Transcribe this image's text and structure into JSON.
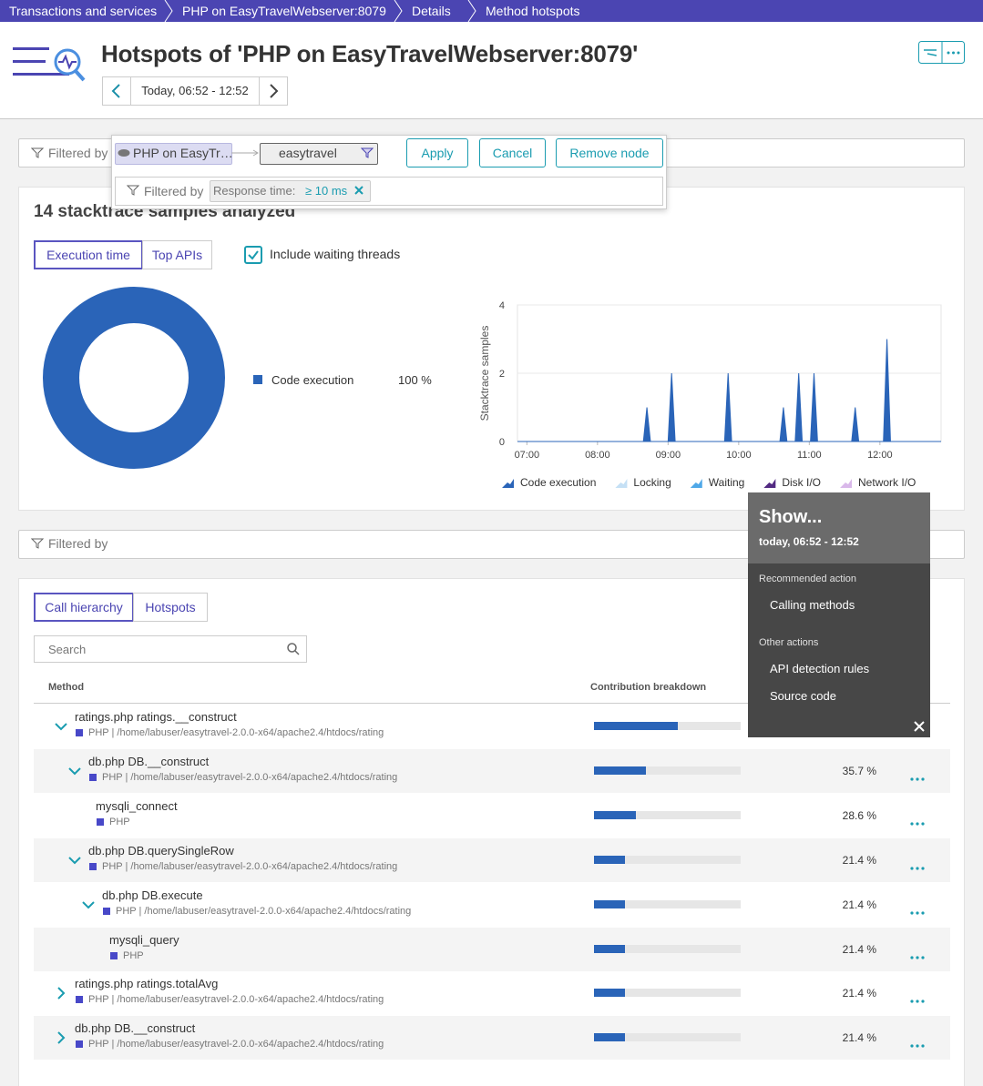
{
  "breadcrumbs": [
    "Transactions and services",
    "PHP on EasyTravelWebserver:8079",
    "Details",
    "Method hotspots"
  ],
  "header": {
    "title": "Hotspots of 'PHP on EasyTravelWebserver:8079'",
    "timeframe": "Today, 06:52 - 12:52"
  },
  "filter_editor": {
    "label": "Filtered by",
    "service_chip": "PHP on EasyTr…",
    "node_chip": "easytravel",
    "buttons": [
      "Apply",
      "Cancel",
      "Remove node"
    ],
    "sub_filter_label": "Filtered by",
    "response_filter": {
      "name": "Response time:",
      "value": "≥ 10 ms"
    }
  },
  "summary": {
    "title": "14 stacktrace samples analyzed",
    "tabs": [
      "Execution time",
      "Top APIs"
    ],
    "checkbox": "Include waiting threads"
  },
  "chart_data": [
    {
      "type": "pie",
      "categories": [
        "Code execution"
      ],
      "values": [
        100
      ],
      "value_labels": [
        "100 %"
      ],
      "colors": [
        "#2a64b8"
      ]
    },
    {
      "type": "area",
      "y_label": "Stacktrace samples",
      "x": [
        "06:52",
        "08:39",
        "08:42",
        "08:45",
        "09:00",
        "09:03",
        "09:06",
        "09:48",
        "09:51",
        "09:54",
        "10:35",
        "10:38",
        "10:41",
        "10:48",
        "10:51",
        "10:54",
        "11:01",
        "11:04",
        "11:07",
        "11:36",
        "11:39",
        "11:42",
        "12:03",
        "12:06",
        "12:09",
        "12:52"
      ],
      "xlim": [
        "06:52",
        "12:52"
      ],
      "xticks": [
        "07:00",
        "08:00",
        "09:00",
        "10:00",
        "11:00",
        "12:00"
      ],
      "ylim": [
        0,
        4
      ],
      "yticks": [
        0,
        2,
        4
      ],
      "grid": true,
      "series": [
        {
          "name": "Code execution",
          "color": "#2a64b8",
          "values": [
            0,
            0,
            1,
            0,
            0,
            2,
            0,
            0,
            2,
            0,
            0,
            1,
            0,
            0,
            2,
            0,
            0,
            2,
            0,
            0,
            1,
            0,
            0,
            3,
            0,
            0
          ]
        },
        {
          "name": "Locking",
          "color": "#c5e0f5",
          "values": [
            0,
            0,
            0,
            0,
            0,
            0,
            0,
            0,
            0,
            0,
            0,
            0,
            0,
            0,
            0,
            0,
            0,
            0,
            0,
            0,
            0,
            0,
            0,
            0,
            0,
            0
          ]
        },
        {
          "name": "Waiting",
          "color": "#4fa8e8",
          "values": [
            0,
            0,
            0,
            0,
            0,
            0,
            0,
            0,
            0,
            0,
            0,
            0,
            0,
            0,
            0,
            0,
            0,
            0,
            0,
            0,
            0,
            0,
            0,
            0,
            0,
            0
          ]
        },
        {
          "name": "Disk I/O",
          "color": "#522a82",
          "values": [
            0,
            0,
            0,
            0,
            0,
            0,
            0,
            0,
            0,
            0,
            0,
            0,
            0,
            0,
            0,
            0,
            0,
            0,
            0,
            0,
            0,
            0,
            0,
            0,
            0,
            0
          ]
        },
        {
          "name": "Network I/O",
          "color": "#d9b8ea",
          "values": [
            0,
            0,
            0,
            0,
            0,
            0,
            0,
            0,
            0,
            0,
            0,
            0,
            0,
            0,
            0,
            0,
            0,
            0,
            0,
            0,
            0,
            0,
            0,
            0,
            0,
            0
          ]
        }
      ]
    }
  ],
  "method_filter": {
    "label": "Filtered by"
  },
  "methods": {
    "tabs": [
      "Call hierarchy",
      "Hotspots"
    ],
    "search_placeholder": "Search",
    "columns": [
      "Method",
      "Contribution breakdown"
    ],
    "rows": [
      {
        "name": "ratings.php ratings.__construct",
        "source": "PHP | /home/labuser/easytravel-2.0.0-x64/apache2.4/htdocs/rating",
        "depth": 0,
        "expanded": true,
        "contribution": 57.1
      },
      {
        "name": "db.php DB.__construct",
        "source": "PHP | /home/labuser/easytravel-2.0.0-x64/apache2.4/htdocs/rating",
        "depth": 1,
        "expanded": true,
        "contribution": 35.7,
        "contribution_label": "35.7 %"
      },
      {
        "name": "mysqli_connect",
        "source": "PHP",
        "depth": 2,
        "expanded": null,
        "contribution": 28.6,
        "contribution_label": "28.6 %"
      },
      {
        "name": "db.php DB.querySingleRow",
        "source": "PHP | /home/labuser/easytravel-2.0.0-x64/apache2.4/htdocs/rating",
        "depth": 1,
        "expanded": true,
        "contribution": 21.4,
        "contribution_label": "21.4 %"
      },
      {
        "name": "db.php DB.execute",
        "source": "PHP | /home/labuser/easytravel-2.0.0-x64/apache2.4/htdocs/rating",
        "depth": 2,
        "expanded": true,
        "contribution": 21.4,
        "contribution_label": "21.4 %"
      },
      {
        "name": "mysqli_query",
        "source": "PHP",
        "depth": 3,
        "expanded": null,
        "contribution": 21.4,
        "contribution_label": "21.4 %"
      },
      {
        "name": "ratings.php ratings.totalAvg",
        "source": "PHP | /home/labuser/easytravel-2.0.0-x64/apache2.4/htdocs/rating",
        "depth": 0,
        "expanded": false,
        "contribution": 21.4,
        "contribution_label": "21.4 %"
      },
      {
        "name": "db.php DB.__construct",
        "source": "PHP | /home/labuser/easytravel-2.0.0-x64/apache2.4/htdocs/rating",
        "depth": 0,
        "expanded": false,
        "contribution": 21.4,
        "contribution_label": "21.4 %"
      }
    ]
  },
  "context_menu": {
    "title": "Show...",
    "subtitle": "today, 06:52 - 12:52",
    "recommended_heading": "Recommended action",
    "recommended": [
      "Calling methods"
    ],
    "other_heading": "Other actions",
    "other": [
      "API detection rules",
      "Source code"
    ]
  }
}
